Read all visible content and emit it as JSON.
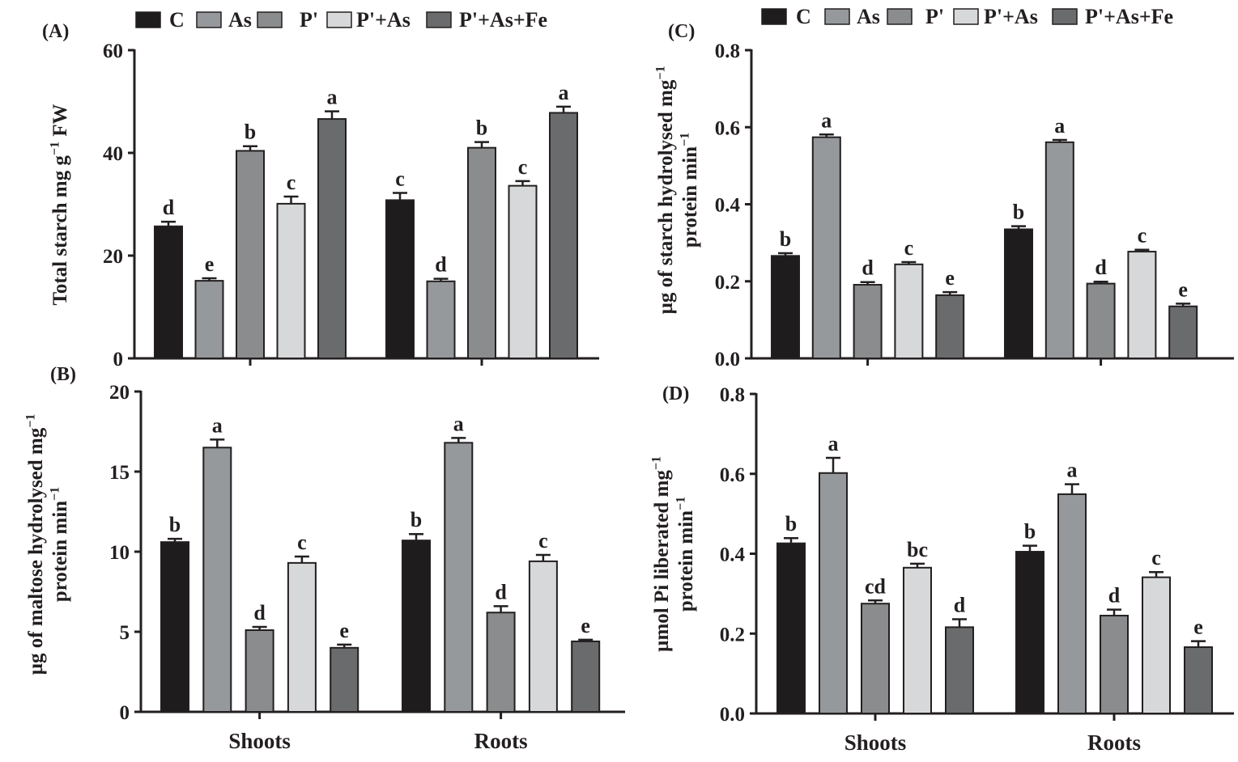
{
  "figure": {
    "colors": {
      "C": "#1e1c1d",
      "As": "#96999c",
      "P'": "#8a8c8e",
      "P'+As": "#d6d8d9",
      "P'+As+Fe": "#6a6b6d",
      "axis": "#231f20"
    }
  },
  "chart_data": [
    {
      "panel": "(A)",
      "type": "bar",
      "ylabel_html": "Total starch mg g<tspan dy='-9' font-size='15'>−1</tspan><tspan dy='9'> FW</tspan>",
      "ylabel_lines": [
        "Total starch mg g−1 FW"
      ],
      "categories": [
        "",
        ""
      ],
      "yticks": [
        "0",
        "20",
        "40",
        "60"
      ],
      "ylim": [
        0,
        60
      ],
      "legend": [
        {
          "key": "C",
          "label": "C"
        },
        {
          "key": "As",
          "label": "As"
        },
        {
          "key": "P'",
          "label": "P'"
        },
        {
          "key": "P'+As",
          "label": "P'+As"
        },
        {
          "key": "P'+As+Fe",
          "label": "P'+As+Fe"
        }
      ],
      "series": [
        {
          "key": "C",
          "values": [
            25.7,
            30.8
          ],
          "errors": [
            0.9,
            1.4
          ],
          "letters": [
            "d",
            "c"
          ]
        },
        {
          "key": "As",
          "values": [
            15.1,
            15.0
          ],
          "errors": [
            0.5,
            0.5
          ],
          "letters": [
            "e",
            "d"
          ]
        },
        {
          "key": "P'",
          "values": [
            40.4,
            41.0
          ],
          "errors": [
            0.9,
            1.1
          ],
          "letters": [
            "b",
            "b"
          ]
        },
        {
          "key": "P'+As",
          "values": [
            30.1,
            33.6
          ],
          "errors": [
            1.4,
            0.9
          ],
          "letters": [
            "c",
            "c"
          ]
        },
        {
          "key": "P'+As+Fe",
          "values": [
            46.6,
            47.8
          ],
          "errors": [
            1.5,
            1.2
          ],
          "letters": [
            "a",
            "a"
          ]
        }
      ]
    },
    {
      "panel": "(B)",
      "type": "bar",
      "ylabel_lines": [
        "µg of maltose hydrolysed mg−1",
        "protein min−1"
      ],
      "categories": [
        "Shoots",
        "Roots"
      ],
      "yticks": [
        "0",
        "5",
        "10",
        "15",
        "20"
      ],
      "ylim": [
        0,
        20
      ],
      "series": [
        {
          "key": "C",
          "values": [
            10.6,
            10.7
          ],
          "errors": [
            0.2,
            0.4
          ],
          "letters": [
            "b",
            "b"
          ]
        },
        {
          "key": "As",
          "values": [
            16.5,
            16.8
          ],
          "errors": [
            0.5,
            0.3
          ],
          "letters": [
            "a",
            "a"
          ]
        },
        {
          "key": "P'",
          "values": [
            5.1,
            6.2
          ],
          "errors": [
            0.2,
            0.4
          ],
          "letters": [
            "d",
            "d"
          ]
        },
        {
          "key": "P'+As",
          "values": [
            9.3,
            9.4
          ],
          "errors": [
            0.4,
            0.4
          ],
          "letters": [
            "c",
            "c"
          ]
        },
        {
          "key": "P'+As+Fe",
          "values": [
            4.0,
            4.4
          ],
          "errors": [
            0.2,
            0.1
          ],
          "letters": [
            "e",
            "e"
          ]
        }
      ]
    },
    {
      "panel": "(C)",
      "type": "bar",
      "ylabel_lines": [
        "µg of starch hydrolysed mg−1",
        "protein min−1"
      ],
      "categories": [
        "",
        ""
      ],
      "yticks": [
        "0.0",
        "0.2",
        "0.4",
        "0.6",
        "0.8"
      ],
      "ylim": [
        0,
        0.8
      ],
      "legend": [
        {
          "key": "C",
          "label": "C"
        },
        {
          "key": "As",
          "label": "As"
        },
        {
          "key": "P'",
          "label": "P'"
        },
        {
          "key": "P'+As",
          "label": "P'+As"
        },
        {
          "key": "P'+As+Fe",
          "label": "P'+As+Fe"
        }
      ],
      "series": [
        {
          "key": "C",
          "values": [
            0.266,
            0.335
          ],
          "errors": [
            0.007,
            0.008
          ],
          "letters": [
            "b",
            "b"
          ]
        },
        {
          "key": "As",
          "values": [
            0.574,
            0.561
          ],
          "errors": [
            0.007,
            0.006
          ],
          "letters": [
            "a",
            "a"
          ]
        },
        {
          "key": "P'",
          "values": [
            0.191,
            0.194
          ],
          "errors": [
            0.007,
            0.005
          ],
          "letters": [
            "d",
            "d"
          ]
        },
        {
          "key": "P'+As",
          "values": [
            0.244,
            0.277
          ],
          "errors": [
            0.006,
            0.005
          ],
          "letters": [
            "c",
            "c"
          ]
        },
        {
          "key": "P'+As+Fe",
          "values": [
            0.164,
            0.135
          ],
          "errors": [
            0.008,
            0.007
          ],
          "letters": [
            "e",
            "e"
          ]
        }
      ]
    },
    {
      "panel": "(D)",
      "type": "bar",
      "ylabel_lines": [
        "µmol Pi liberated mg−1",
        "protein min−1"
      ],
      "categories": [
        "Shoots",
        "Roots"
      ],
      "yticks": [
        "0.0",
        "0.2",
        "0.4",
        "0.6",
        "0.8"
      ],
      "ylim": [
        0,
        0.8
      ],
      "series": [
        {
          "key": "C",
          "values": [
            0.426,
            0.405
          ],
          "errors": [
            0.013,
            0.015
          ],
          "letters": [
            "b",
            "b"
          ]
        },
        {
          "key": "As",
          "values": [
            0.602,
            0.549
          ],
          "errors": [
            0.038,
            0.025
          ],
          "letters": [
            "a",
            "a"
          ]
        },
        {
          "key": "P'",
          "values": [
            0.275,
            0.245
          ],
          "errors": [
            0.008,
            0.015
          ],
          "letters": [
            "cd",
            "d"
          ]
        },
        {
          "key": "P'+As",
          "values": [
            0.365,
            0.341
          ],
          "errors": [
            0.01,
            0.013
          ],
          "letters": [
            "bc",
            "c"
          ]
        },
        {
          "key": "P'+As+Fe",
          "values": [
            0.216,
            0.166
          ],
          "errors": [
            0.02,
            0.015
          ],
          "letters": [
            "d",
            "e"
          ]
        }
      ]
    }
  ]
}
